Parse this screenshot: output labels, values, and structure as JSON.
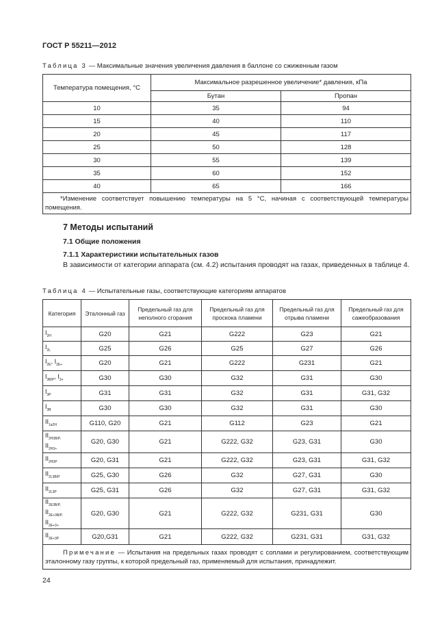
{
  "header": {
    "title": "ГОСТ Р 55211—2012"
  },
  "table3": {
    "caption_label": "Таблица 3",
    "caption_text": "— Максимальные значения увеличения давления в баллоне со сжиженным газом",
    "head": {
      "temp": "Температура помещения, °С",
      "group": "Максимальное разрешенное увеличение* давления, кПа",
      "butane": "Бутан",
      "propane": "Пропан"
    },
    "rows": [
      [
        "10",
        "35",
        "94"
      ],
      [
        "15",
        "40",
        "110"
      ],
      [
        "20",
        "45",
        "117"
      ],
      [
        "25",
        "50",
        "128"
      ],
      [
        "30",
        "55",
        "139"
      ],
      [
        "35",
        "60",
        "152"
      ],
      [
        "40",
        "65",
        "166"
      ]
    ],
    "footnote": "*Изменение соответствует повышению температуры на 5 °С, начиная с соответствующей температуры помещения."
  },
  "section": {
    "title": "7 Методы испытаний",
    "sub_title": "7.1 Общие положения",
    "subsub_title": "7.1.1 Характеристики испытательных газов",
    "paragraph": "В зависимости от категории аппарата (см. 4.2) испытания проводят на газах, приведенных в таблице 4."
  },
  "table4": {
    "caption_label": "Таблица 4",
    "caption_text": "— Испытательные газы, соответствующие категориям аппаратов",
    "headers": [
      "Категория",
      "Эталонный газ",
      "Предельный газ для неполного сгорания",
      "Предельный газ для проскока пламени",
      "Предельный газ для отрыва пламени",
      "Предельный газ для сажеобразования"
    ],
    "rows": [
      {
        "category": [
          [
            {
              "text": "I",
              "sub": "2H"
            }
          ]
        ],
        "cells": [
          "G20",
          "G21",
          "G222",
          "G23",
          "G21"
        ]
      },
      {
        "category": [
          [
            {
              "text": "I",
              "sub": "2L"
            }
          ]
        ],
        "cells": [
          "G25",
          "G26",
          "G25",
          "G27",
          "G26"
        ]
      },
      {
        "category": [
          [
            {
              "text": "I",
              "sub": "2E"
            },
            {
              "text": ", I",
              "sub": "2E+"
            }
          ]
        ],
        "cells": [
          "G20",
          "G21",
          "G222",
          "G231",
          "G21"
        ]
      },
      {
        "category": [
          [
            {
              "text": "I",
              "sub": "3B/P"
            },
            {
              "text": ", I",
              "sub": "3+"
            }
          ]
        ],
        "cells": [
          "G30",
          "G30",
          "G32",
          "G31",
          "G30"
        ]
      },
      {
        "category": [
          [
            {
              "text": "I",
              "sub": "3P"
            }
          ]
        ],
        "cells": [
          "G31",
          "G31",
          "G32",
          "G31",
          "G31, G32"
        ]
      },
      {
        "category": [
          [
            {
              "text": "I",
              "sub": "3B"
            }
          ]
        ],
        "cells": [
          "G30",
          "G30",
          "G32",
          "G31",
          "G30"
        ]
      },
      {
        "category": [
          [
            {
              "text": "II",
              "sub": "1a2H"
            }
          ]
        ],
        "cells": [
          "G110, G20",
          "G21",
          "G112",
          "G23",
          "G21"
        ]
      },
      {
        "category": [
          [
            {
              "text": "II",
              "sub": "2H3B/P,"
            }
          ],
          [
            {
              "text": "II",
              "sub": "2H3+"
            }
          ]
        ],
        "cells": [
          "G20, G30",
          "G21",
          "G222, G32",
          "G23, G31",
          "G30"
        ]
      },
      {
        "category": [
          [
            {
              "text": "II",
              "sub": "2H3P"
            }
          ]
        ],
        "cells": [
          "G20, G31",
          "G21",
          "G222, G32",
          "G23, G31",
          "G31, G32"
        ]
      },
      {
        "category": [
          [
            {
              "text": "II",
              "sub": "2L3B/P"
            }
          ]
        ],
        "cells": [
          "G25, G30",
          "G26",
          "G32",
          "G27, G31",
          "G30"
        ]
      },
      {
        "category": [
          [
            {
              "text": "II",
              "sub": "2L3P"
            }
          ]
        ],
        "cells": [
          "G25, G31",
          "G26",
          "G32",
          "G27, G31",
          "G31, G32"
        ]
      },
      {
        "category": [
          [
            {
              "text": "II",
              "sub": "2E3B/P,"
            }
          ],
          [
            {
              "text": "II",
              "sub": "2E+3B/P,"
            }
          ],
          [
            {
              "text": "II",
              "sub": "2E+3+"
            }
          ]
        ],
        "cells": [
          "G20, G30",
          "G21",
          "G222, G32",
          "G231, G31",
          "G30"
        ]
      },
      {
        "category": [
          [
            {
              "text": "II",
              "sub": "2E+3P"
            }
          ]
        ],
        "cells": [
          "G20,G31",
          "G21",
          "G222, G32",
          "G231, G31",
          "G31, G32"
        ]
      }
    ],
    "note_label": "Примечание",
    "note_text": "— Испытания на предельных газах проводят с соплами и регулированием, соответствующим эталонному газу группы, к которой предельный газ, применяемый для испытания, принадлежит."
  },
  "footer": {
    "page_number": "24"
  }
}
